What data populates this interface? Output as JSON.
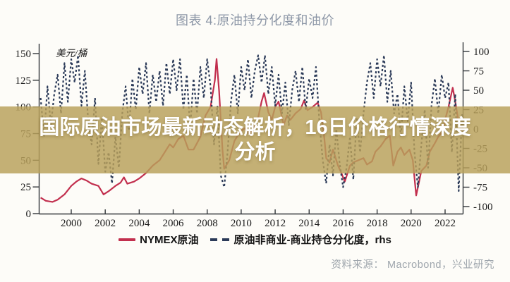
{
  "header": {
    "title": "图表 4:原油持分化度和油价"
  },
  "overlay": {
    "line1": "国际原油市场最新动态解析，16日价格行情深度",
    "line2": "分析"
  },
  "source": "资料来源： Macrobond，兴业研究",
  "colors": {
    "accent_red": "#c22f4e",
    "navy": "#2b3a58",
    "band_tan": "rgba(184,160,90,0.83)",
    "title_gray": "#8d97a7",
    "source_gray": "#9fa6ad"
  },
  "chart_data": {
    "type": "line",
    "title": "图表 4:原油持分化度和油价",
    "ylabel_left": "美元/桶",
    "left_axis": {
      "ticks": [
        150,
        125,
        100,
        75,
        50,
        25,
        0
      ],
      "range": [
        0,
        150
      ]
    },
    "right_axis": {
      "ticks": [
        100,
        75,
        50,
        25,
        0,
        -25,
        -50,
        -75,
        -100
      ],
      "range": [
        -100,
        100
      ],
      "suffix": "rhs"
    },
    "x_ticks": [
      2000,
      2002,
      2004,
      2006,
      2008,
      2010,
      2012,
      2014,
      2016,
      2018,
      2020,
      2022
    ],
    "x_range": [
      1998.2,
      2023.4
    ],
    "grid": false,
    "legend_position": "bottom",
    "series": [
      {
        "name": "NYMEX原油",
        "axis": "left",
        "style": "solid",
        "color": "#c22f4e",
        "x": [
          1998.2,
          1998.5,
          1998.9,
          1999.2,
          1999.6,
          2000.0,
          2000.3,
          2000.6,
          2000.9,
          2001.2,
          2001.6,
          2001.9,
          2002.2,
          2002.6,
          2002.9,
          2003.1,
          2003.3,
          2003.7,
          2004.0,
          2004.4,
          2004.8,
          2005.2,
          2005.6,
          2005.8,
          2006.0,
          2006.3,
          2006.6,
          2006.9,
          2007.2,
          2007.6,
          2007.9,
          2008.2,
          2008.45,
          2008.55,
          2008.7,
          2008.9,
          2009.0,
          2009.3,
          2009.6,
          2009.9,
          2010.2,
          2010.5,
          2010.8,
          2011.0,
          2011.2,
          2011.35,
          2011.6,
          2011.8,
          2012.0,
          2012.2,
          2012.5,
          2012.7,
          2012.9,
          2013.2,
          2013.5,
          2013.7,
          2013.9,
          2014.2,
          2014.5,
          2014.7,
          2014.9,
          2015.0,
          2015.2,
          2015.4,
          2015.7,
          2015.9,
          2016.1,
          2016.4,
          2016.6,
          2016.9,
          2017.2,
          2017.4,
          2017.7,
          2017.9,
          2018.2,
          2018.5,
          2018.75,
          2018.95,
          2019.2,
          2019.4,
          2019.6,
          2019.9,
          2020.1,
          2020.3,
          2020.6,
          2020.9,
          2021.1,
          2021.4,
          2021.6,
          2021.9,
          2022.0,
          2022.2,
          2022.45,
          2022.6,
          2022.8,
          2023.0,
          2023.2
        ],
        "values": [
          15,
          12,
          11,
          13,
          18,
          26,
          30,
          33,
          31,
          28,
          26,
          18,
          21,
          26,
          29,
          34,
          28,
          30,
          33,
          38,
          45,
          50,
          60,
          65,
          62,
          70,
          73,
          60,
          60,
          72,
          92,
          100,
          125,
          145,
          115,
          60,
          42,
          50,
          68,
          76,
          80,
          74,
          82,
          90,
          105,
          113,
          95,
          88,
          100,
          105,
          83,
          92,
          88,
          94,
          98,
          106,
          97,
          100,
          104,
          95,
          70,
          52,
          48,
          60,
          45,
          38,
          30,
          45,
          48,
          50,
          52,
          46,
          49,
          58,
          63,
          70,
          73,
          45,
          58,
          62,
          55,
          60,
          50,
          17,
          40,
          45,
          58,
          66,
          72,
          78,
          88,
          100,
          118,
          105,
          85,
          78,
          88
        ]
      },
      {
        "name": "原油非商业-商业持仓分化度，rhs",
        "axis": "right",
        "style": "dashed",
        "color": "#2b3a58",
        "x_start": 1998.2,
        "x_step": 0.2,
        "values": [
          40,
          -10,
          55,
          5,
          45,
          70,
          20,
          85,
          35,
          90,
          60,
          95,
          30,
          75,
          10,
          -20,
          40,
          -45,
          15,
          -55,
          -30,
          -70,
          -10,
          -50,
          20,
          55,
          0,
          65,
          25,
          80,
          45,
          85,
          20,
          70,
          35,
          75,
          30,
          85,
          45,
          90,
          50,
          90,
          25,
          70,
          0,
          65,
          20,
          80,
          40,
          90,
          55,
          -20,
          30,
          -60,
          -75,
          -30,
          35,
          70,
          20,
          80,
          50,
          90,
          40,
          75,
          95,
          60,
          95,
          45,
          80,
          30,
          70,
          20,
          60,
          5,
          50,
          75,
          35,
          80,
          25,
          65,
          40,
          80,
          10,
          -40,
          -70,
          -20,
          -60,
          0,
          -45,
          -75,
          -50,
          -10,
          -65,
          15,
          -30,
          20,
          60,
          85,
          40,
          90,
          55,
          95,
          35,
          75,
          20,
          45,
          -10,
          55,
          10,
          60,
          -30,
          -75,
          -20,
          25,
          -50,
          30,
          65,
          20,
          70,
          40,
          60,
          -30,
          45,
          -80,
          20,
          -55,
          30
        ]
      }
    ]
  }
}
